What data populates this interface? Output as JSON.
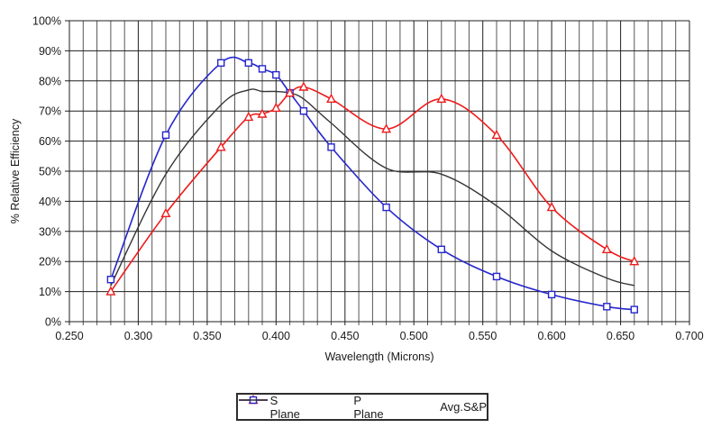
{
  "chart_data": {
    "type": "line",
    "title": "",
    "xlabel": "Wavelength (Microns)",
    "ylabel": "% Relative Efficiency",
    "xlim": [
      0.25,
      0.7
    ],
    "ylim": [
      0,
      100
    ],
    "x_minor_step": 0.01,
    "x_major_every": 5,
    "grid": "both",
    "legend_position": "bottom-center",
    "x_ticks": {
      "values": [
        0.25,
        0.3,
        0.35,
        0.4,
        0.45,
        0.5,
        0.55,
        0.6,
        0.65,
        0.7
      ],
      "labels": [
        "0.250",
        "0.300",
        "0.350",
        "0.400",
        "0.450",
        "0.500",
        "0.550",
        "0.600",
        "0.650",
        "0.700"
      ]
    },
    "y_ticks": {
      "values": [
        0,
        10,
        20,
        30,
        40,
        50,
        60,
        70,
        80,
        90,
        100
      ],
      "labels": [
        "0%",
        "10%",
        "20%",
        "30%",
        "40%",
        "50%",
        "60%",
        "70%",
        "80%",
        "90%",
        "100%"
      ]
    },
    "x": [
      0.28,
      0.32,
      0.36,
      0.38,
      0.39,
      0.4,
      0.41,
      0.42,
      0.44,
      0.48,
      0.52,
      0.56,
      0.6,
      0.64,
      0.66
    ],
    "series": [
      {
        "name": "S Plane",
        "color": "#ee1c1c",
        "marker": "triangle",
        "values": [
          10,
          36,
          58,
          68,
          69,
          71,
          76,
          78,
          74,
          64,
          74,
          62,
          38,
          24,
          20
        ]
      },
      {
        "name": "P Plane",
        "color": "#2626cd",
        "marker": "square",
        "values": [
          14,
          62,
          86,
          86,
          84,
          82,
          76,
          70,
          58,
          38,
          24,
          15,
          9,
          5,
          4
        ]
      },
      {
        "name": "Avg.S&P",
        "color": "#363636",
        "marker": "none",
        "values": [
          12,
          49,
          72,
          77,
          76.5,
          76.5,
          76,
          74,
          66,
          51,
          49,
          38.5,
          23.5,
          14.5,
          12
        ]
      }
    ],
    "colors": {
      "background": "#ffffff",
      "grid_major": "#1f1f1f",
      "grid_minor": "#565656",
      "axis": "#1f1f1f",
      "text": "#1a1a1a",
      "marker_fill": "#ffffff",
      "legend_border": "#2e2e2e"
    }
  }
}
